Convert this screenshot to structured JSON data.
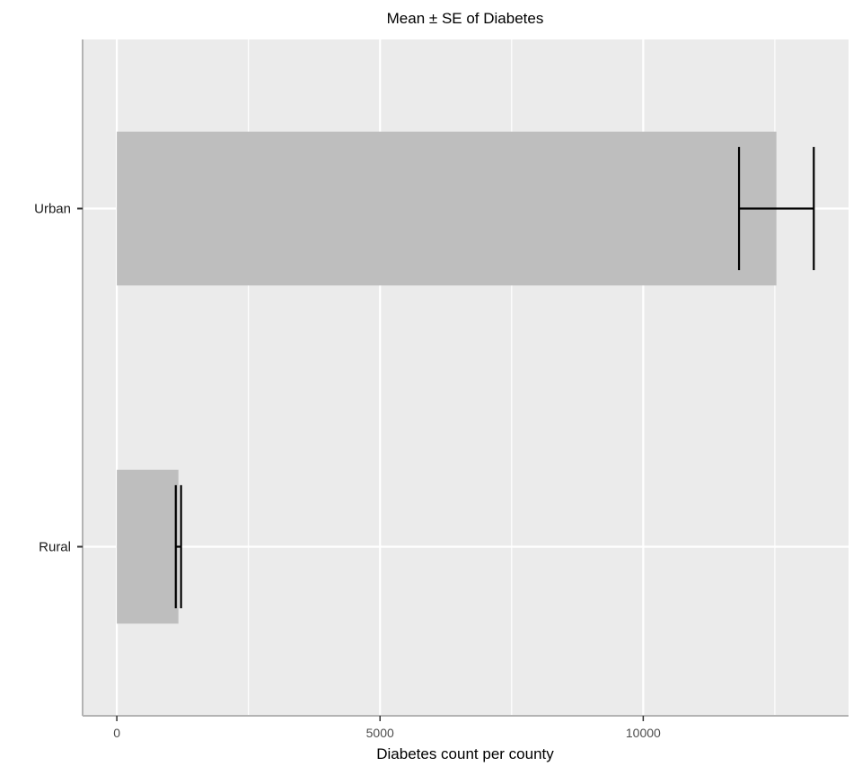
{
  "chart_data": {
    "type": "bar",
    "orientation": "horizontal",
    "title": "Mean ± SE of Diabetes",
    "xlabel": "Diabetes count per county",
    "ylabel": "",
    "categories": [
      "Rural",
      "Urban"
    ],
    "values": [
      1170,
      12530
    ],
    "error_low": [
      1120,
      11820
    ],
    "error_high": [
      1220,
      13240
    ],
    "xlim": [
      -650,
      13900
    ],
    "xticks": [
      0,
      5000,
      10000
    ],
    "xtick_labels": [
      "0",
      "5000",
      "10000"
    ],
    "grid": true,
    "legend": "none",
    "colors": {
      "panel": "#ebebeb",
      "grid": "#ffffff",
      "bar": "#bebebe",
      "error_bar": "#000000",
      "axis_line": "#b3b3b3"
    }
  }
}
